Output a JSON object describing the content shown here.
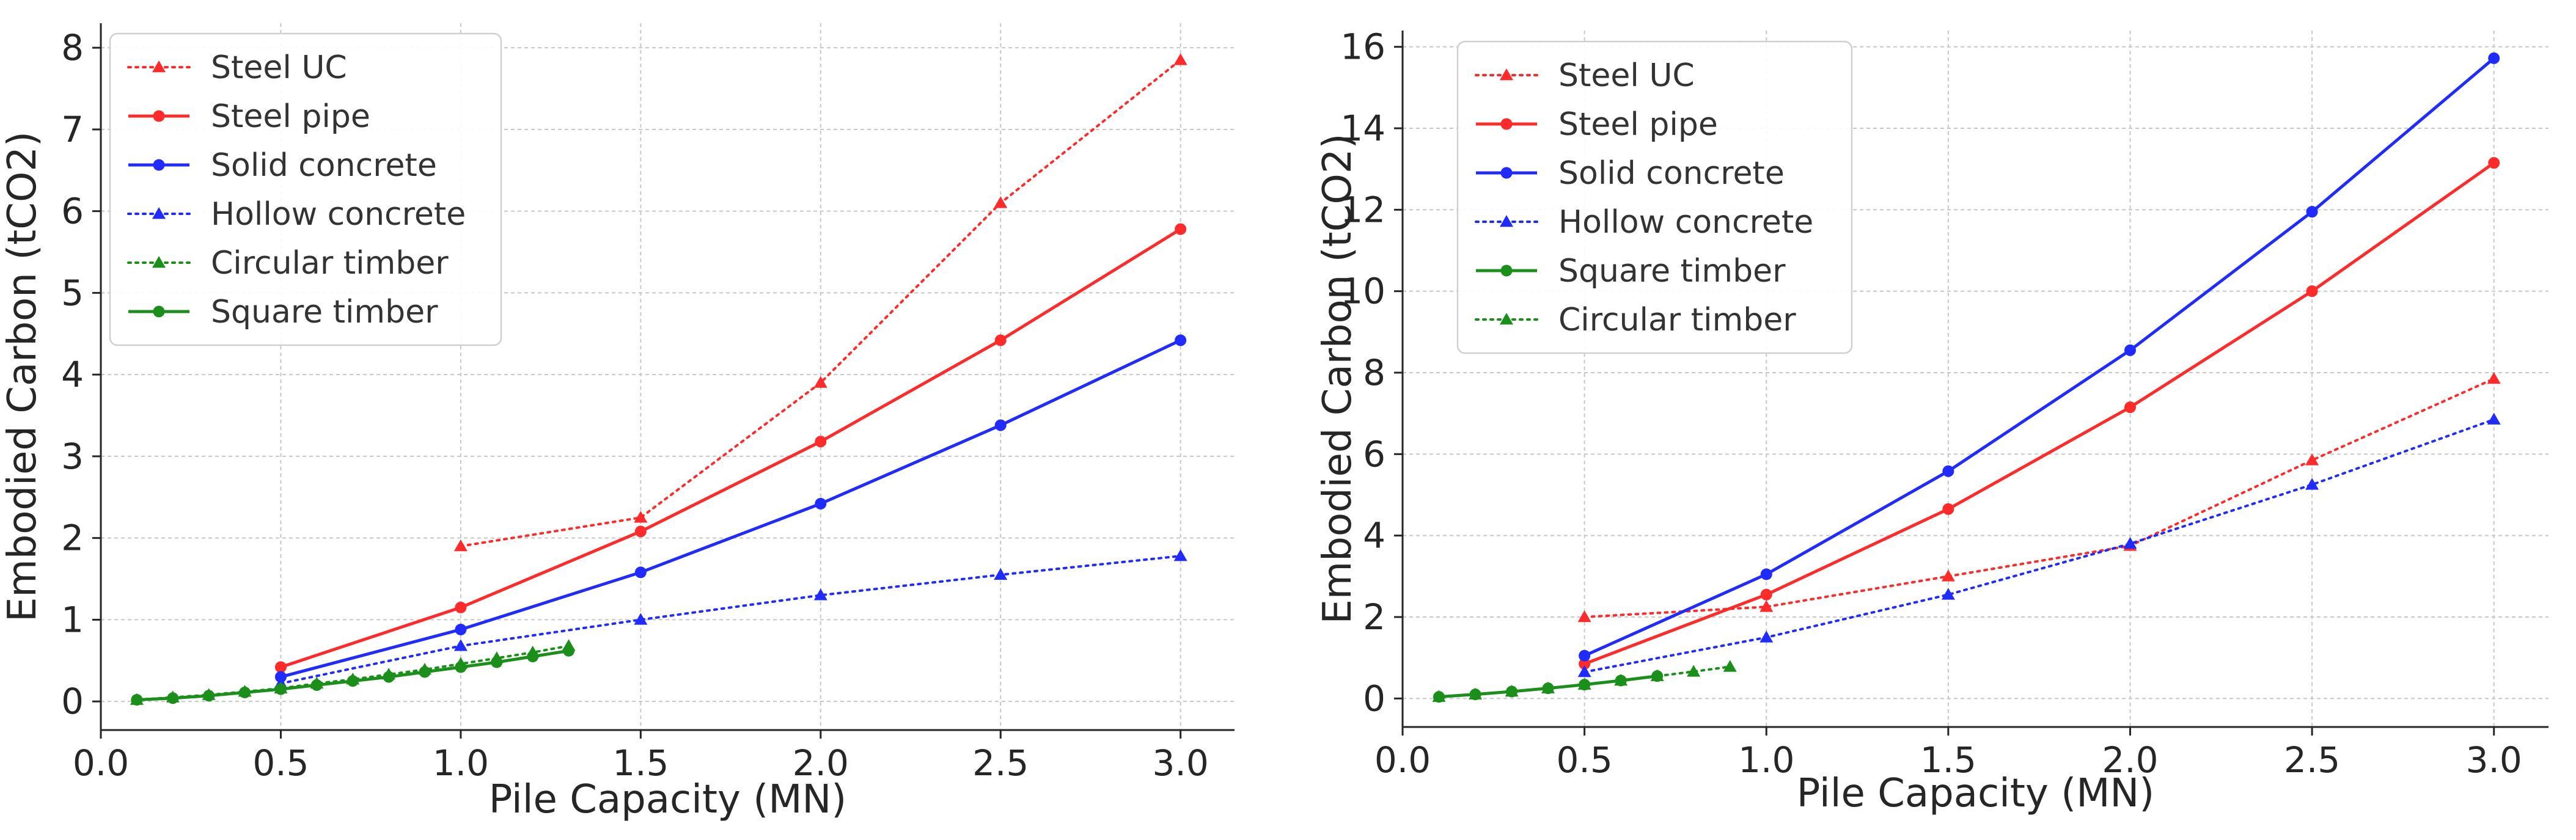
{
  "chart_data": [
    {
      "type": "line",
      "xlabel": "Pile Capacity (MN)",
      "ylabel": "Embodied Carbon (tCO2)",
      "xlim": [
        0.0,
        3.15
      ],
      "ylim": [
        -0.35,
        8.3
      ],
      "xticks": [
        0.0,
        0.5,
        1.0,
        1.5,
        2.0,
        2.5,
        3.0
      ],
      "xtick_labels": [
        "0.0",
        "0.5",
        "1.0",
        "1.5",
        "2.0",
        "2.5",
        "3.0"
      ],
      "yticks": [
        0,
        1,
        2,
        3,
        4,
        5,
        6,
        7,
        8
      ],
      "ytick_labels": [
        "0",
        "1",
        "2",
        "3",
        "4",
        "5",
        "6",
        "7",
        "8"
      ],
      "grid": true,
      "legend_position": "top-left",
      "series": [
        {
          "name": "Steel UC",
          "color": "#ff2b2b",
          "style": "dotted",
          "marker": "triangle",
          "x": [
            1.0,
            1.5,
            2.0,
            2.5,
            3.0
          ],
          "y": [
            1.9,
            2.25,
            3.9,
            6.1,
            7.85
          ]
        },
        {
          "name": "Steel pipe",
          "color": "#ff2b2b",
          "style": "solid",
          "marker": "circle",
          "x": [
            0.5,
            1.0,
            1.5,
            2.0,
            2.5,
            3.0
          ],
          "y": [
            0.42,
            1.15,
            2.08,
            3.18,
            4.42,
            5.78
          ]
        },
        {
          "name": "Solid concrete",
          "color": "#1f2bff",
          "style": "solid",
          "marker": "circle",
          "x": [
            0.5,
            1.0,
            1.5,
            2.0,
            2.5,
            3.0
          ],
          "y": [
            0.3,
            0.88,
            1.58,
            2.42,
            3.38,
            4.42
          ]
        },
        {
          "name": "Hollow concrete",
          "color": "#1f2bff",
          "style": "dotted",
          "marker": "triangle",
          "x": [
            0.5,
            1.0,
            1.5,
            2.0,
            2.5,
            3.0
          ],
          "y": [
            0.22,
            0.68,
            1.0,
            1.3,
            1.55,
            1.78
          ]
        },
        {
          "name": "Circular timber",
          "color": "#1a8f1a",
          "style": "dotted",
          "marker": "triangle",
          "x": [
            0.1,
            0.2,
            0.3,
            0.4,
            0.5,
            0.6,
            0.7,
            0.8,
            0.9,
            1.0,
            1.1,
            1.2,
            1.3
          ],
          "y": [
            0.02,
            0.05,
            0.08,
            0.12,
            0.16,
            0.22,
            0.27,
            0.33,
            0.39,
            0.46,
            0.53,
            0.6,
            0.68
          ]
        },
        {
          "name": "Square timber",
          "color": "#1a8f1a",
          "style": "solid",
          "marker": "circle",
          "x": [
            0.1,
            0.2,
            0.3,
            0.4,
            0.5,
            0.6,
            0.7,
            0.8,
            0.9,
            1.0,
            1.1,
            1.2,
            1.3
          ],
          "y": [
            0.02,
            0.04,
            0.07,
            0.11,
            0.15,
            0.2,
            0.25,
            0.3,
            0.36,
            0.42,
            0.48,
            0.55,
            0.62
          ]
        }
      ]
    },
    {
      "type": "line",
      "xlabel": "Pile Capacity (MN)",
      "ylabel": "Embodied Carbon (tCO2)",
      "xlim": [
        0.0,
        3.15
      ],
      "ylim": [
        -0.7,
        16.4
      ],
      "xticks": [
        0.0,
        0.5,
        1.0,
        1.5,
        2.0,
        2.5,
        3.0
      ],
      "xtick_labels": [
        "0.0",
        "0.5",
        "1.0",
        "1.5",
        "2.0",
        "2.5",
        "3.0"
      ],
      "yticks": [
        0,
        2,
        4,
        6,
        8,
        10,
        12,
        14,
        16
      ],
      "ytick_labels": [
        "0",
        "2",
        "4",
        "6",
        "8",
        "10",
        "12",
        "14",
        "16"
      ],
      "grid": true,
      "legend_position": "top-left",
      "series": [
        {
          "name": "Steel UC",
          "color": "#ff2b2b",
          "style": "dotted",
          "marker": "triangle",
          "x": [
            0.5,
            1.0,
            1.5,
            2.0,
            2.5,
            3.0
          ],
          "y": [
            2.0,
            2.25,
            3.0,
            3.75,
            5.85,
            7.85
          ]
        },
        {
          "name": "Steel pipe",
          "color": "#ff2b2b",
          "style": "solid",
          "marker": "circle",
          "x": [
            0.5,
            1.0,
            1.5,
            2.0,
            2.5,
            3.0
          ],
          "y": [
            0.85,
            2.55,
            4.65,
            7.15,
            10.0,
            13.15
          ]
        },
        {
          "name": "Solid concrete",
          "color": "#1f2bff",
          "style": "solid",
          "marker": "circle",
          "x": [
            0.5,
            1.0,
            1.5,
            2.0,
            2.5,
            3.0
          ],
          "y": [
            1.05,
            3.05,
            5.58,
            8.55,
            11.95,
            15.72
          ]
        },
        {
          "name": "Hollow concrete",
          "color": "#1f2bff",
          "style": "dotted",
          "marker": "triangle",
          "x": [
            0.5,
            1.0,
            1.5,
            2.0,
            2.5,
            3.0
          ],
          "y": [
            0.65,
            1.5,
            2.55,
            3.8,
            5.25,
            6.85
          ]
        },
        {
          "name": "Square timber",
          "color": "#1a8f1a",
          "style": "solid",
          "marker": "circle",
          "x": [
            0.1,
            0.2,
            0.3,
            0.4,
            0.5,
            0.6,
            0.7
          ],
          "y": [
            0.04,
            0.1,
            0.17,
            0.25,
            0.34,
            0.44,
            0.55
          ]
        },
        {
          "name": "Circular timber",
          "color": "#1a8f1a",
          "style": "dotted",
          "marker": "triangle",
          "x": [
            0.1,
            0.2,
            0.3,
            0.4,
            0.5,
            0.6,
            0.7,
            0.8,
            0.9
          ],
          "y": [
            0.04,
            0.1,
            0.17,
            0.25,
            0.34,
            0.44,
            0.55,
            0.66,
            0.78
          ]
        }
      ]
    }
  ]
}
